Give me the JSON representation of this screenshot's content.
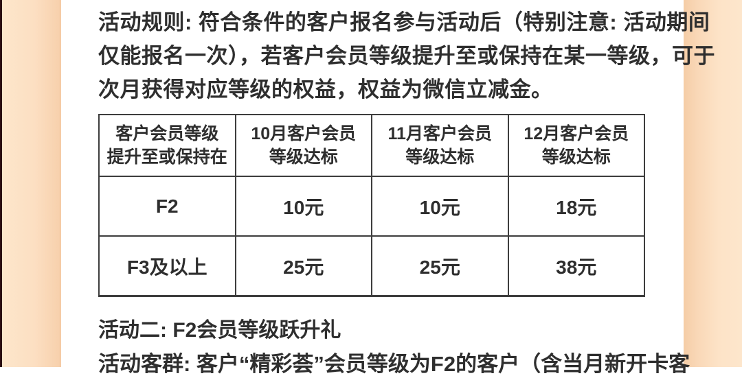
{
  "page": {
    "background_color": "#ffffff",
    "side_band_color": "#fcdfc2",
    "edge_strip_color": "#2b0c12",
    "text_color": "#2e2e2e",
    "table_border_color": "#3d3d3d"
  },
  "rules": {
    "lines": [
      "活动规则: 符合条件的客户报名参与活动后（特别注意: 活动期间",
      "仅能报名一次），若客户会员等级提升至或保持在某一等级，可于",
      "次月获得对应等级的权益，权益为微信立减金。"
    ]
  },
  "table": {
    "headers": [
      "客户会员等级\n提升至或保持在",
      "10月客户会员\n等级达标",
      "11月客户会员\n等级达标",
      "12月客户会员\n等级达标"
    ],
    "rows": [
      {
        "cells": [
          "F2",
          "10元",
          "10元",
          "18元"
        ]
      },
      {
        "cells": [
          "F3及以上",
          "25元",
          "25元",
          "38元"
        ]
      }
    ]
  },
  "activity2": {
    "heading": "活动二: F2会员等级跃升礼",
    "audience_line": "活动客群: 客户“精彩荟”会员等级为F2的客户（含当月新开卡客"
  }
}
